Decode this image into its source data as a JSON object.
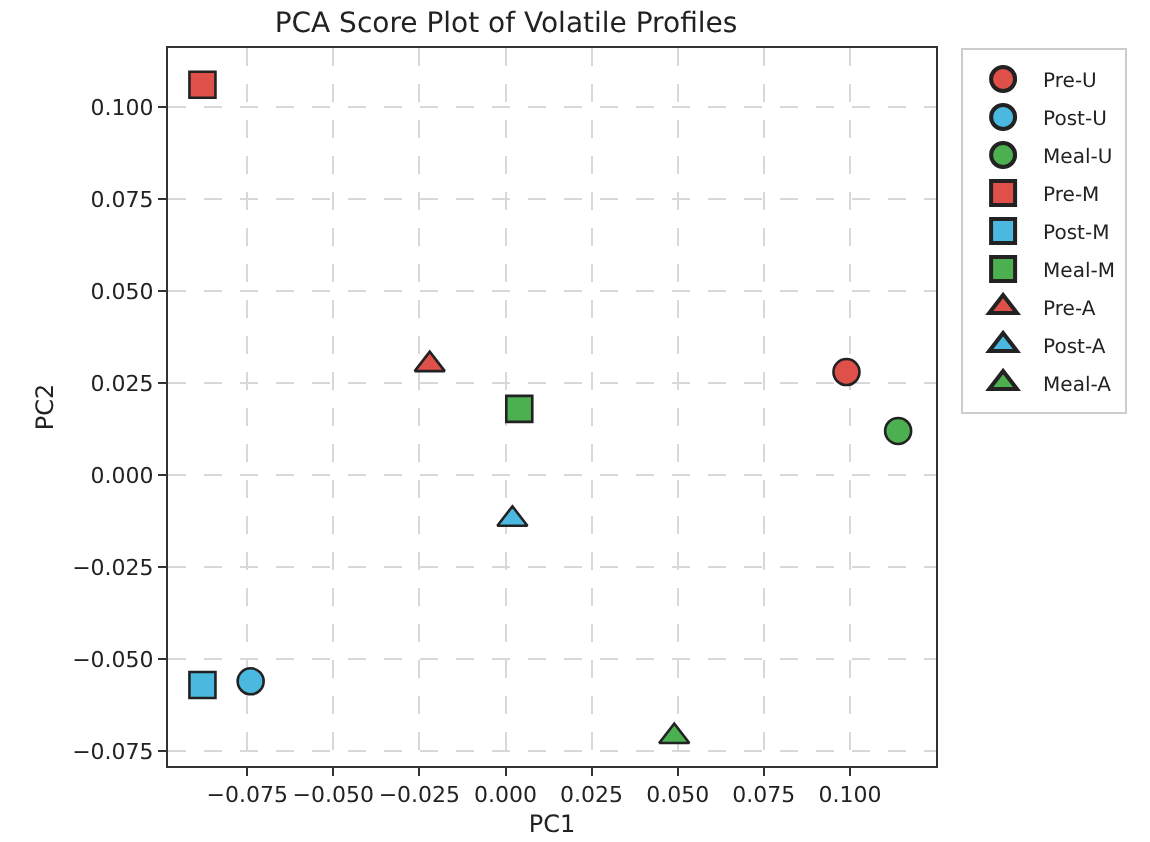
{
  "chart_data": {
    "type": "scatter",
    "title": "PCA Score Plot of Volatile Profiles",
    "xlabel": "PC1",
    "ylabel": "PC2",
    "xlim": [
      -0.098,
      0.125
    ],
    "ylim": [
      -0.079,
      0.116
    ],
    "xticks": [
      {
        "value": -0.075,
        "label": "−0.075"
      },
      {
        "value": -0.05,
        "label": "−0.050"
      },
      {
        "value": -0.025,
        "label": "−0.025"
      },
      {
        "value": 0,
        "label": "0.000"
      },
      {
        "value": 0.025,
        "label": "0.025"
      },
      {
        "value": 0.05,
        "label": "0.050"
      },
      {
        "value": 0.075,
        "label": "0.075"
      },
      {
        "value": 0.1,
        "label": "0.100"
      }
    ],
    "yticks": [
      {
        "value": -0.075,
        "label": "−0.075"
      },
      {
        "value": -0.05,
        "label": "−0.050"
      },
      {
        "value": -0.025,
        "label": "−0.025"
      },
      {
        "value": 0,
        "label": "0.000"
      },
      {
        "value": 0.025,
        "label": "0.025"
      },
      {
        "value": 0.05,
        "label": "0.050"
      },
      {
        "value": 0.075,
        "label": "0.075"
      },
      {
        "value": 0.1,
        "label": "0.100"
      }
    ],
    "grid": true,
    "legend": "top right",
    "series": [
      {
        "name": "Pre-U",
        "color": "#e0504a",
        "marker": "circle",
        "x": [
          0.099
        ],
        "values": [
          0.028
        ]
      },
      {
        "name": "Post-U",
        "color": "#4bb8e0",
        "marker": "circle",
        "x": [
          -0.074
        ],
        "values": [
          -0.056
        ]
      },
      {
        "name": "Meal-U",
        "color": "#4caf50",
        "marker": "circle",
        "x": [
          0.114
        ],
        "values": [
          0.012
        ]
      },
      {
        "name": "Pre-M",
        "color": "#e0504a",
        "marker": "square",
        "x": [
          -0.088
        ],
        "values": [
          0.106
        ]
      },
      {
        "name": "Post-M",
        "color": "#4bb8e0",
        "marker": "square",
        "x": [
          -0.088
        ],
        "values": [
          -0.057
        ]
      },
      {
        "name": "Meal-M",
        "color": "#4caf50",
        "marker": "square",
        "x": [
          0.004
        ],
        "values": [
          0.018
        ]
      },
      {
        "name": "Pre-A",
        "color": "#e0504a",
        "marker": "triangle",
        "x": [
          -0.022
        ],
        "values": [
          0.03
        ]
      },
      {
        "name": "Post-A",
        "color": "#4bb8e0",
        "marker": "triangle",
        "x": [
          0.002
        ],
        "values": [
          -0.012
        ]
      },
      {
        "name": "Meal-A",
        "color": "#4caf50",
        "marker": "triangle",
        "x": [
          0.049
        ],
        "values": [
          -0.071
        ]
      }
    ]
  }
}
